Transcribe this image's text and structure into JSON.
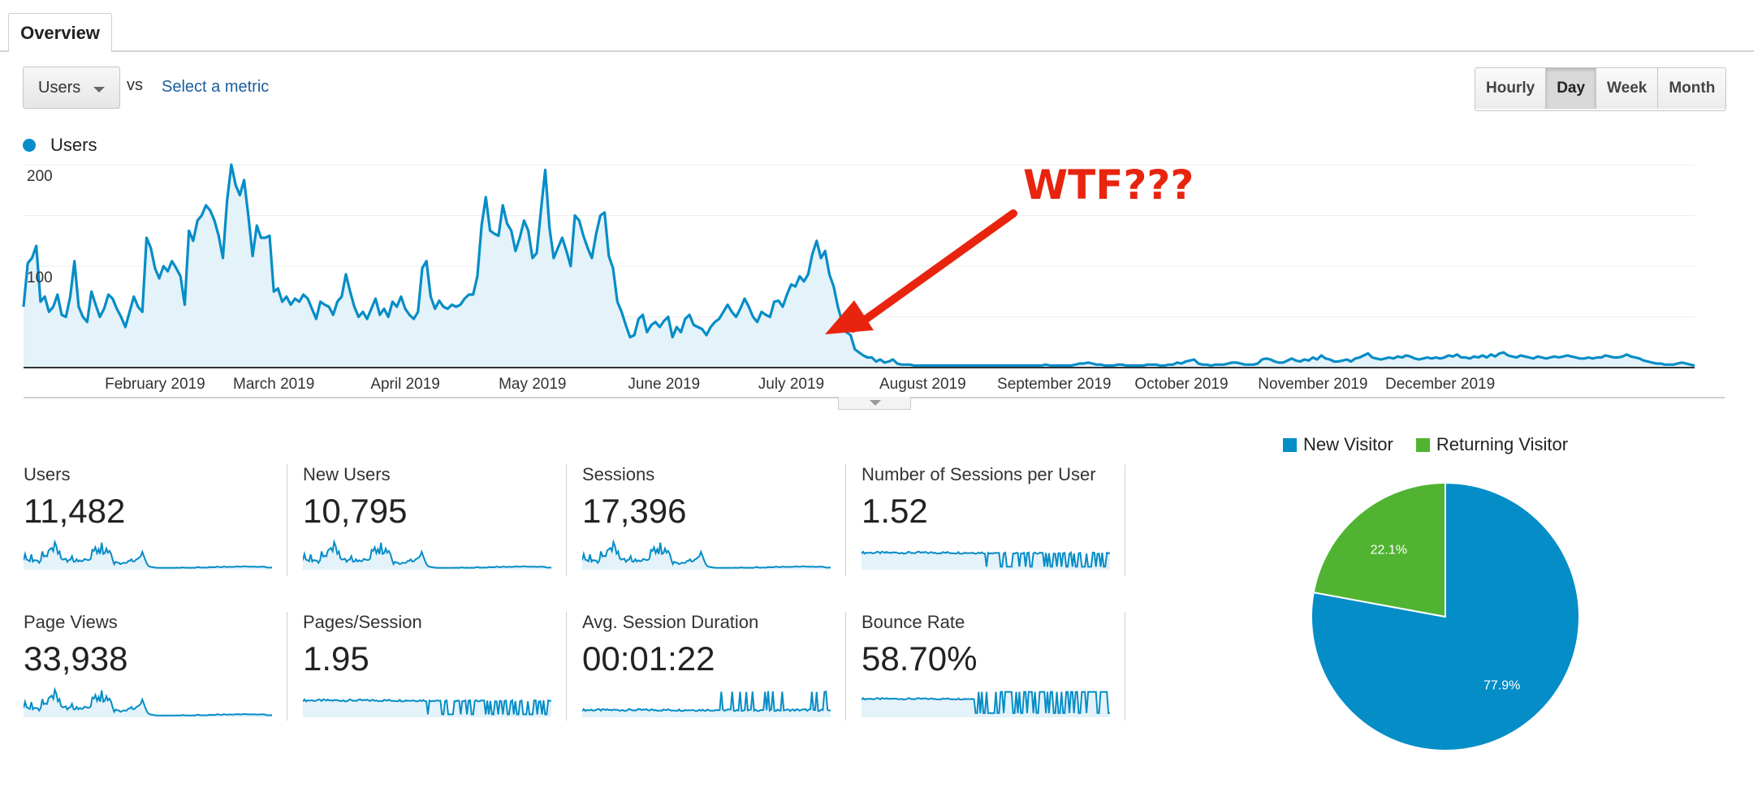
{
  "tabs": {
    "overview_label": "Overview"
  },
  "toolbar": {
    "metric_select_value": "Users",
    "vs_label": "vs",
    "select_metric_label": "Select a metric",
    "periods": [
      "Hourly",
      "Day",
      "Week",
      "Month"
    ],
    "active_period": "Day"
  },
  "legend": {
    "series_name": "Users"
  },
  "chart_data": {
    "type": "area",
    "x_tick_labels": [
      "February 2019",
      "March 2019",
      "April 2019",
      "May 2019",
      "June 2019",
      "July 2019",
      "August 2019",
      "September 2019",
      "October 2019",
      "November 2019",
      "December 2019"
    ],
    "y_tick_labels": [
      "200",
      "100"
    ],
    "ylim": [
      0,
      200
    ],
    "series": [
      {
        "name": "Users",
        "color": "#058dc7",
        "x_start": "2019-01-01",
        "x_end": "2019-12-31",
        "values": [
          60,
          103,
          108,
          120,
          65,
          70,
          55,
          60,
          72,
          52,
          50,
          70,
          105,
          60,
          50,
          45,
          75,
          62,
          50,
          58,
          72,
          68,
          58,
          50,
          40,
          55,
          70,
          60,
          55,
          128,
          118,
          98,
          88,
          100,
          95,
          105,
          98,
          90,
          62,
          135,
          125,
          145,
          150,
          160,
          155,
          145,
          130,
          108,
          165,
          200,
          180,
          170,
          185,
          150,
          110,
          140,
          128,
          128,
          130,
          75,
          78,
          65,
          70,
          62,
          68,
          65,
          72,
          68,
          58,
          48,
          65,
          62,
          60,
          52,
          65,
          70,
          92,
          75,
          60,
          50,
          55,
          48,
          58,
          68,
          52,
          58,
          50,
          65,
          60,
          70,
          58,
          52,
          48,
          55,
          98,
          105,
          70,
          58,
          66,
          60,
          58,
          62,
          60,
          62,
          68,
          72,
          72,
          90,
          140,
          168,
          135,
          132,
          130,
          160,
          142,
          135,
          115,
          128,
          145,
          135,
          108,
          113,
          155,
          195,
          138,
          108,
          118,
          128,
          115,
          100,
          150,
          145,
          130,
          118,
          108,
          132,
          150,
          153,
          110,
          98,
          65,
          55,
          42,
          30,
          32,
          48,
          52,
          35,
          42,
          45,
          40,
          46,
          50,
          30,
          40,
          35,
          48,
          52,
          42,
          40,
          38,
          32,
          40,
          45,
          48,
          55,
          62,
          55,
          50,
          58,
          68,
          60,
          50,
          45,
          55,
          52,
          50,
          65,
          66,
          60,
          72,
          82,
          80,
          90,
          85,
          92,
          112,
          125,
          108,
          115,
          92,
          80,
          60,
          45,
          35,
          32,
          18,
          15,
          12,
          10,
          10,
          6,
          8,
          5,
          6,
          8,
          4,
          3,
          3,
          3,
          2,
          2,
          2,
          2,
          2,
          2,
          2,
          2,
          2,
          2,
          2,
          2,
          2,
          2,
          2,
          2,
          2,
          2,
          2,
          2,
          2,
          2,
          2,
          2,
          2,
          2,
          2,
          2,
          2,
          2,
          2,
          3,
          2,
          2,
          2,
          2,
          2,
          2,
          3,
          4,
          4,
          5,
          4,
          3,
          3,
          2,
          2,
          2,
          3,
          3,
          2,
          2,
          2,
          2,
          2,
          3,
          3,
          3,
          2,
          2,
          3,
          3,
          5,
          4,
          6,
          7,
          8,
          4,
          3,
          3,
          2,
          3,
          3,
          3,
          4,
          5,
          5,
          4,
          3,
          3,
          3,
          4,
          8,
          9,
          8,
          6,
          5,
          5,
          7,
          9,
          7,
          6,
          8,
          7,
          10,
          8,
          12,
          9,
          8,
          6,
          6,
          7,
          8,
          6,
          9,
          10,
          12,
          14,
          10,
          9,
          8,
          9,
          10,
          9,
          11,
          10,
          12,
          11,
          9,
          8,
          9,
          10,
          9,
          10,
          9,
          10,
          12,
          11,
          13,
          10,
          10,
          9,
          11,
          10,
          12,
          10,
          13,
          11,
          14,
          15,
          12,
          11,
          10,
          12,
          11,
          10,
          9,
          11,
          10,
          9,
          10,
          11,
          10,
          11,
          12,
          11,
          10,
          9,
          9,
          10,
          9,
          10,
          10,
          12,
          11,
          10,
          10,
          11,
          13,
          11,
          10,
          9,
          7,
          6,
          5,
          4,
          4,
          3,
          3,
          3,
          4,
          5,
          4,
          3,
          2
        ]
      }
    ]
  },
  "stats": [
    {
      "label": "Users",
      "value": "11,482",
      "spark": "traffic"
    },
    {
      "label": "New Users",
      "value": "10,795",
      "spark": "traffic"
    },
    {
      "label": "Sessions",
      "value": "17,396",
      "spark": "traffic"
    },
    {
      "label": "Number of Sessions per User",
      "value": "1.52",
      "spark": "flat-dips"
    },
    {
      "label": "Page Views",
      "value": "33,938",
      "spark": "traffic"
    },
    {
      "label": "Pages/Session",
      "value": "1.95",
      "spark": "flat-dips"
    },
    {
      "label": "Avg. Session Duration",
      "value": "00:01:22",
      "spark": "spikes"
    },
    {
      "label": "Bounce Rate",
      "value": "58.70%",
      "spark": "high-dips"
    }
  ],
  "pie_chart": {
    "type": "pie",
    "legend": [
      {
        "name": "New Visitor",
        "color": "#058dc7"
      },
      {
        "name": "Returning Visitor",
        "color": "#50b432"
      }
    ],
    "slices": [
      {
        "name": "New Visitor",
        "value": 77.9,
        "label": "77.9%",
        "color": "#058dc7"
      },
      {
        "name": "Returning Visitor",
        "value": 22.1,
        "label": "22.1%",
        "color": "#50b432"
      }
    ]
  },
  "annotation": {
    "text": "WTF???",
    "color": "#e8240f"
  }
}
